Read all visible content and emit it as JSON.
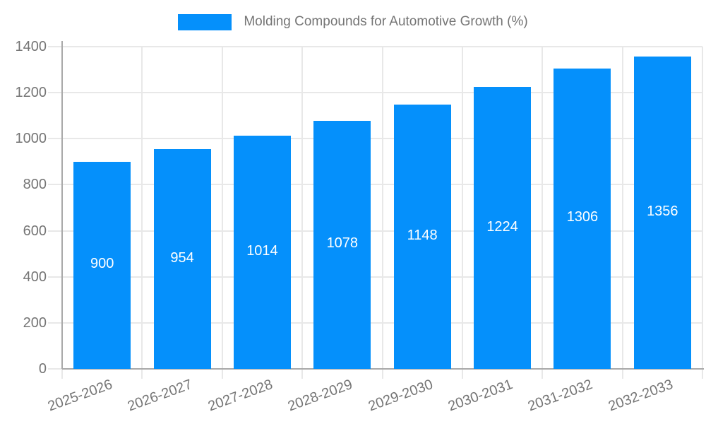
{
  "legend": {
    "label": "Molding Compounds for Automotive Growth (%)"
  },
  "colors": {
    "bar": "#0590fb",
    "grid": "#e8e8e8",
    "axis": "#a9a9a9",
    "tick_text": "#757575",
    "legend_text": "#757575",
    "value_label": "#ffffff",
    "background": "#ffffff"
  },
  "chart_data": {
    "type": "bar",
    "title": "Molding Compounds for Automotive Growth (%)",
    "categories": [
      "2025-2026",
      "2026-2027",
      "2027-2028",
      "2028-2029",
      "2029-2030",
      "2030-2031",
      "2031-2032",
      "2032-2033"
    ],
    "series": [
      {
        "name": "Molding Compounds for Automotive Growth (%)",
        "values": [
          900,
          954,
          1014,
          1078,
          1148,
          1224,
          1306,
          1356
        ]
      }
    ],
    "xlabel": "",
    "ylabel": "",
    "ylim": [
      0,
      1400
    ],
    "yticks": [
      0,
      200,
      400,
      600,
      800,
      1000,
      1200,
      1400
    ],
    "grid": "both",
    "legend_position": "top-center",
    "value_labels_position": "inside-center",
    "x_label_rotation_deg": -20
  }
}
